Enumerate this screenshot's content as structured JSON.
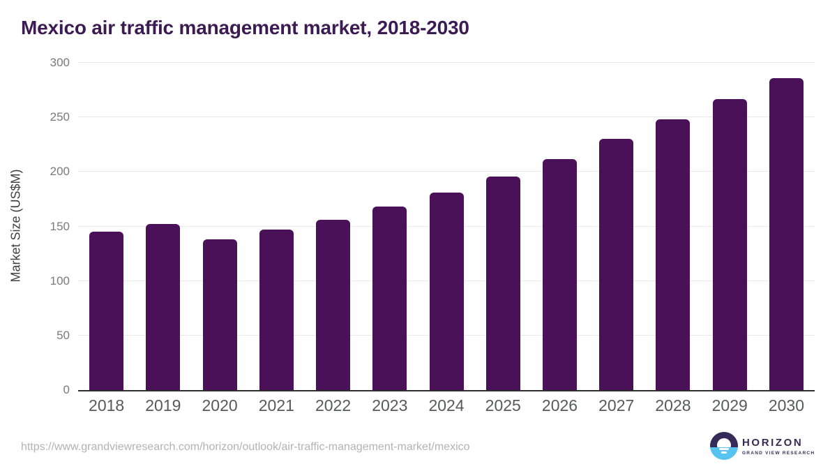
{
  "title": "Mexico air traffic management market, 2018-2030",
  "chart_data": {
    "type": "bar",
    "title": "Mexico air traffic management market, 2018-2030",
    "categories": [
      "2018",
      "2019",
      "2020",
      "2021",
      "2022",
      "2023",
      "2024",
      "2025",
      "2026",
      "2027",
      "2028",
      "2029",
      "2030"
    ],
    "values": [
      145,
      152,
      138,
      147,
      156,
      168,
      181,
      196,
      212,
      230,
      248,
      267,
      286
    ],
    "xlabel": "",
    "ylabel": "Market Size (US$M)",
    "ylim": [
      0,
      300
    ],
    "yticks": [
      0,
      50,
      100,
      150,
      200,
      250,
      300
    ],
    "grid": true,
    "legend": "none",
    "bar_color": "#4a1058"
  },
  "footer": {
    "source_url": "https://www.grandviewresearch.com/horizon/outlook/air-traffic-management-market/mexico",
    "logo_name": "HORIZON",
    "logo_subtitle": "GRAND VIEW RESEARCH"
  },
  "colors": {
    "bar": "#4a1058",
    "title": "#3c1a52",
    "grid": "#e9e9e9",
    "axis": "#2e2e2e",
    "tick_label": "#7a7a7a",
    "x_label": "#58595b",
    "y_title": "#3f3f3f",
    "url": "#b3b3b3",
    "logo_dark": "#362a56",
    "logo_blue": "#56c3f1"
  }
}
